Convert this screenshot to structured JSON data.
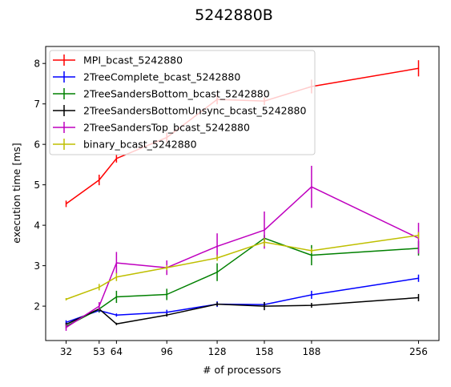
{
  "chart_data": {
    "type": "line",
    "title": "5242880B",
    "xlabel": "# of processors",
    "ylabel": "execution time [ms]",
    "x": [
      32,
      53,
      64,
      96,
      128,
      158,
      188,
      256
    ],
    "x_ticks": [
      32,
      53,
      64,
      96,
      128,
      158,
      188,
      256
    ],
    "y_ticks": [
      2,
      3,
      4,
      5,
      6,
      7,
      8
    ],
    "xlim": [
      19,
      269
    ],
    "ylim": [
      1.15,
      8.42
    ],
    "grid": false,
    "legend_position": "top-left",
    "series": [
      {
        "name": "MPI_bcast_5242880",
        "color": "#ff0000",
        "values": [
          4.53,
          5.12,
          5.65,
          6.17,
          7.11,
          7.07,
          7.43,
          7.88
        ],
        "errors": [
          0.08,
          0.13,
          0.1,
          0.12,
          0.12,
          0.1,
          0.17,
          0.2
        ]
      },
      {
        "name": "2TreeComplete_bcast_5242880",
        "color": "#0000ff",
        "values": [
          1.6,
          1.89,
          1.78,
          1.85,
          2.05,
          2.04,
          2.28,
          2.69
        ],
        "errors": [
          0.05,
          0.05,
          0.04,
          0.06,
          0.07,
          0.06,
          0.1,
          0.09
        ]
      },
      {
        "name": "2TreeSandersBottom_bcast_5242880",
        "color": "#008000",
        "values": [
          1.5,
          1.93,
          2.23,
          2.29,
          2.84,
          3.68,
          3.26,
          3.43
        ],
        "errors": [
          0.05,
          0.08,
          0.15,
          0.14,
          0.22,
          0.08,
          0.25,
          0.18
        ]
      },
      {
        "name": "2TreeSandersBottomUnsync_bcast_5242880",
        "color": "#000000",
        "values": [
          1.55,
          1.93,
          1.56,
          1.78,
          2.05,
          2.0,
          2.02,
          2.21
        ],
        "errors": [
          0.04,
          0.05,
          0.03,
          0.04,
          0.05,
          0.1,
          0.06,
          0.09
        ]
      },
      {
        "name": "2TreeSandersTop_bcast_5242880",
        "color": "#bf00bf",
        "values": [
          1.47,
          2.0,
          3.07,
          2.95,
          3.48,
          3.88,
          4.95,
          3.68
        ],
        "errors": [
          0.08,
          0.1,
          0.27,
          0.18,
          0.32,
          0.46,
          0.52,
          0.38
        ]
      },
      {
        "name": "binary_bcast_5242880",
        "color": "#bfbf00",
        "values": [
          2.17,
          2.47,
          2.72,
          2.95,
          3.19,
          3.58,
          3.37,
          3.75
        ],
        "errors": [
          0.03,
          0.08,
          0.1,
          0.06,
          0.07,
          0.1,
          0.06,
          0.08
        ]
      }
    ]
  }
}
